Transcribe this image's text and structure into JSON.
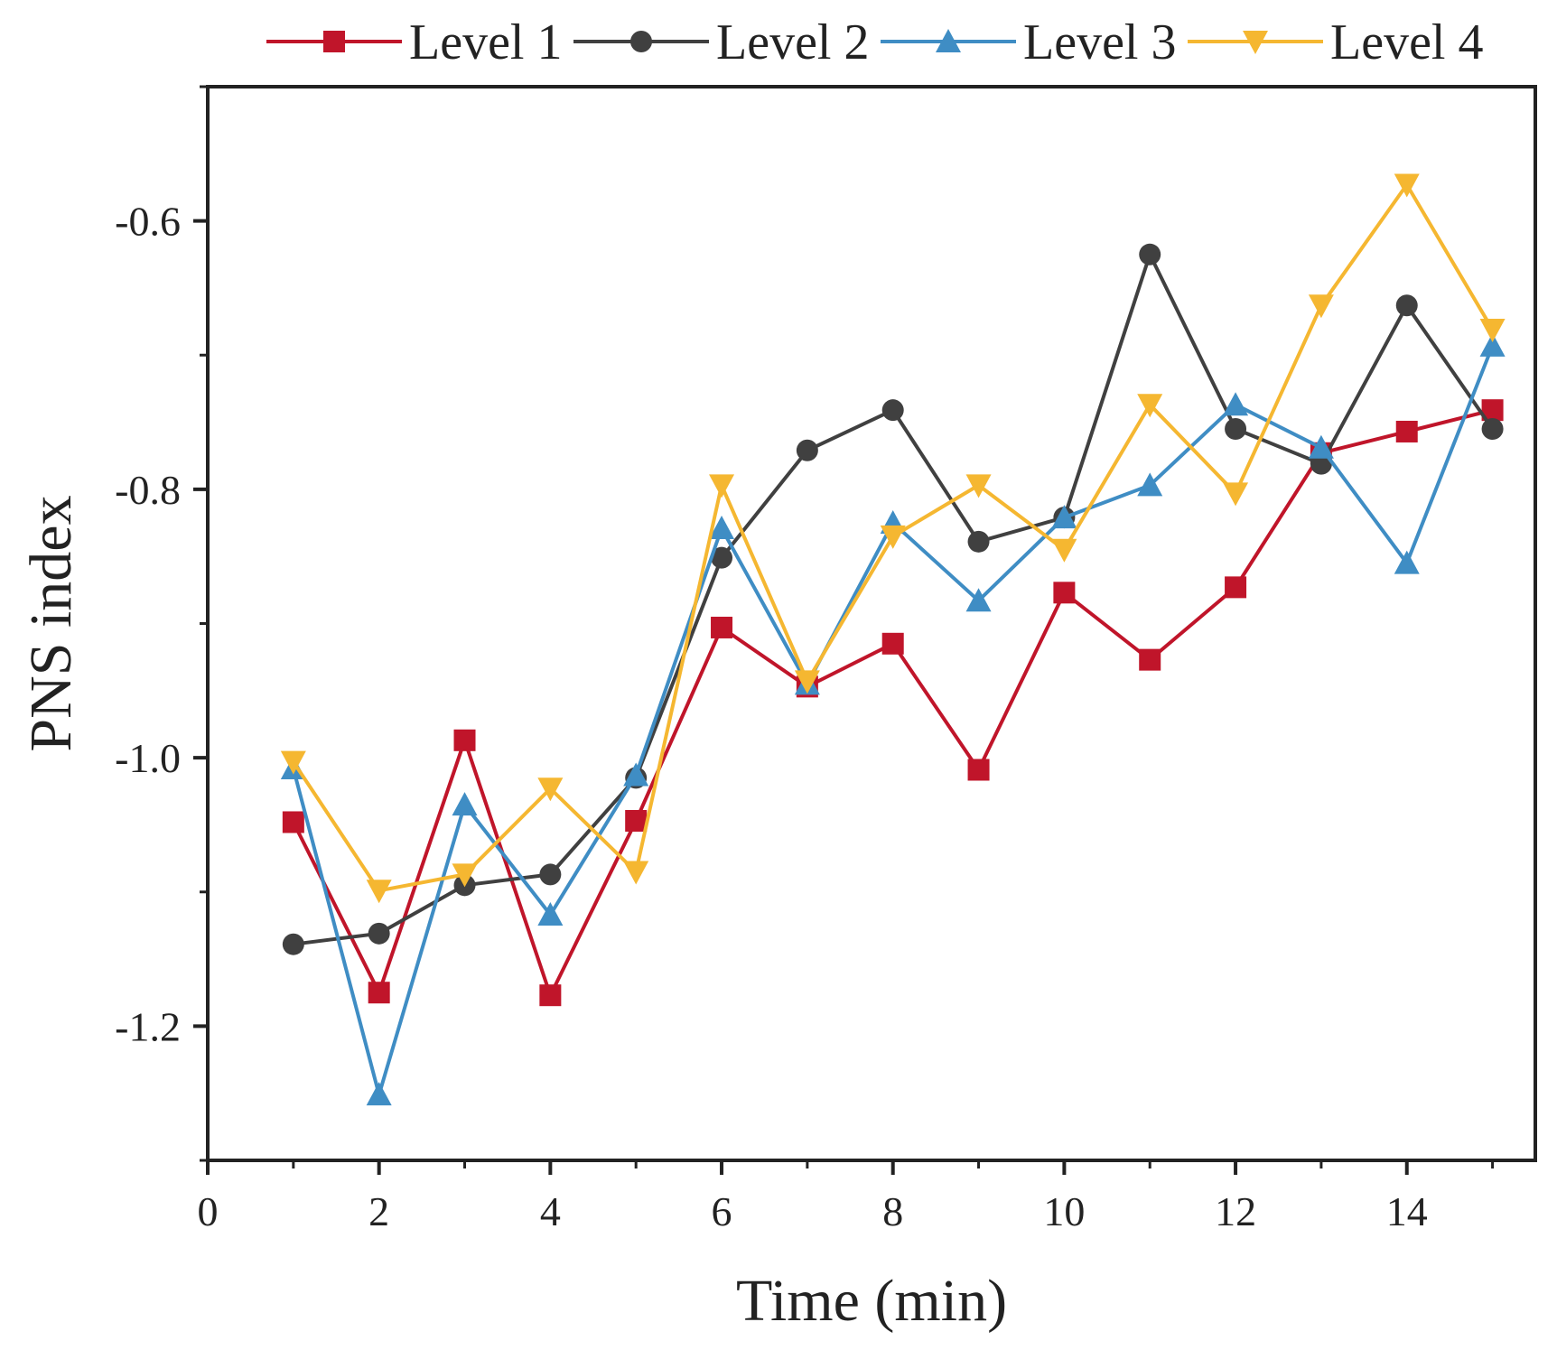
{
  "chart_data": {
    "type": "line",
    "title": "",
    "xlabel": "Time (min)",
    "ylabel": "PNS index",
    "xlim": [
      0,
      15.5
    ],
    "ylim": [
      -1.3,
      -0.5
    ],
    "xticks": [
      0,
      2,
      4,
      6,
      8,
      10,
      12,
      14
    ],
    "xtick_labels": [
      "0",
      "2",
      "4",
      "6",
      "8",
      "10",
      "12",
      "14"
    ],
    "yticks": [
      -1.2,
      -1.0,
      -0.8,
      -0.6
    ],
    "ytick_labels": [
      "-1.2",
      "-1.0",
      "-0.8",
      "-0.6"
    ],
    "minor_yticks": [
      -1.3,
      -1.1,
      -0.9,
      -0.7,
      -0.5
    ],
    "minor_xticks": [
      1,
      3,
      5,
      7,
      9,
      11,
      13,
      15
    ],
    "grid": false,
    "legend_position": "top",
    "x": [
      1,
      2,
      3,
      4,
      5,
      6,
      7,
      8,
      9,
      10,
      11,
      12,
      13,
      14,
      15
    ],
    "series": [
      {
        "name": "Level 1",
        "color": "#c0152a",
        "marker": "square",
        "values": [
          -1.048,
          -1.175,
          -0.987,
          -1.177,
          -1.047,
          -0.903,
          -0.947,
          -0.915,
          -1.009,
          -0.877,
          -0.927,
          -0.873,
          -0.773,
          -0.757,
          -0.741
        ]
      },
      {
        "name": "Level 2",
        "color": "#404040",
        "marker": "circle",
        "values": [
          -1.139,
          -1.131,
          -1.095,
          -1.087,
          -1.015,
          -0.851,
          -0.771,
          -0.741,
          -0.839,
          -0.821,
          -0.625,
          -0.755,
          -0.781,
          -0.663,
          -0.755
        ]
      },
      {
        "name": "Level 3",
        "color": "#3f8dc4",
        "marker": "triangle-up",
        "values": [
          -1.008,
          -1.251,
          -1.035,
          -1.117,
          -1.013,
          -0.829,
          -0.945,
          -0.825,
          -0.883,
          -0.821,
          -0.797,
          -0.737,
          -0.769,
          -0.855,
          -0.693
        ]
      },
      {
        "name": "Level 4",
        "color": "#f5b731",
        "marker": "triangle-down",
        "values": [
          -1.003,
          -1.099,
          -1.087,
          -1.023,
          -1.085,
          -0.797,
          -0.943,
          -0.835,
          -0.797,
          -0.845,
          -0.737,
          -0.803,
          -0.663,
          -0.573,
          -0.681
        ]
      }
    ]
  }
}
